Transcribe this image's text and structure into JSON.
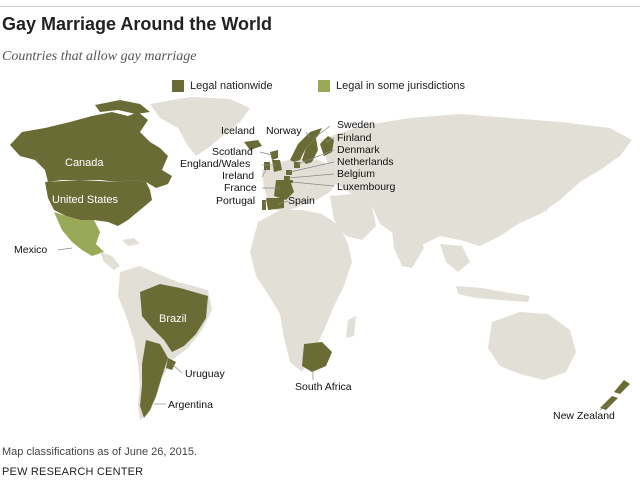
{
  "title": "Gay Marriage Around the World",
  "subtitle": "Countries that allow gay marriage",
  "legend": {
    "nationwide": {
      "label": "Legal nationwide",
      "color": "#6b6b35"
    },
    "some": {
      "label": "Legal in some jurisdictions",
      "color": "#98a957"
    }
  },
  "map_colors": {
    "land": "#e2e0d6",
    "nationwide": "#6b6b35",
    "some": "#98a957"
  },
  "countries": {
    "canada": "Canada",
    "united_states": "United States",
    "mexico": "Mexico",
    "brazil": "Brazil",
    "uruguay": "Uruguay",
    "argentina": "Argentina",
    "iceland": "Iceland",
    "norway": "Norway",
    "sweden": "Sweden",
    "finland": "Finland",
    "denmark": "Denmark",
    "netherlands": "Netherlands",
    "belgium": "Belgium",
    "luxembourg": "Luxembourg",
    "scotland": "Scotland",
    "england_wales": "England/Wales",
    "ireland": "Ireland",
    "france": "France",
    "portugal": "Portugal",
    "spain": "Spain",
    "south_africa": "South Africa",
    "new_zealand": "New Zealand"
  },
  "note": "Map classifications as of June 26, 2015.",
  "source": "PEW RESEARCH CENTER"
}
